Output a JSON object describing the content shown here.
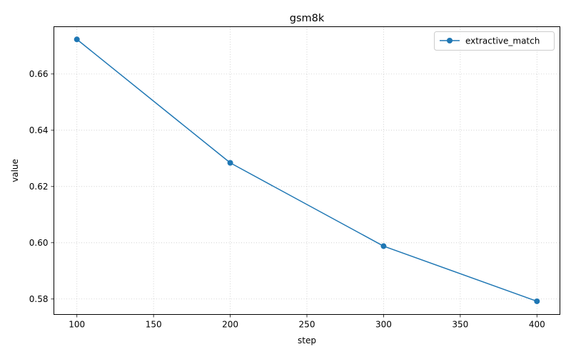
{
  "chart_data": {
    "type": "line",
    "title": "gsm8k",
    "xlabel": "step",
    "ylabel": "value",
    "xlim": [
      85,
      415
    ],
    "ylim": [
      0.5745,
      0.6768
    ],
    "xticks": [
      100,
      150,
      200,
      250,
      300,
      350,
      400
    ],
    "yticks": [
      0.58,
      0.6,
      0.62,
      0.64,
      0.66
    ],
    "grid": true,
    "legend": "top-right",
    "series": [
      {
        "name": "extractive_match",
        "color": "#1f77b4",
        "marker": "circle",
        "x": [
          100,
          200,
          300,
          400
        ],
        "y": [
          0.6723,
          0.6284,
          0.5988,
          0.5792
        ]
      }
    ]
  }
}
